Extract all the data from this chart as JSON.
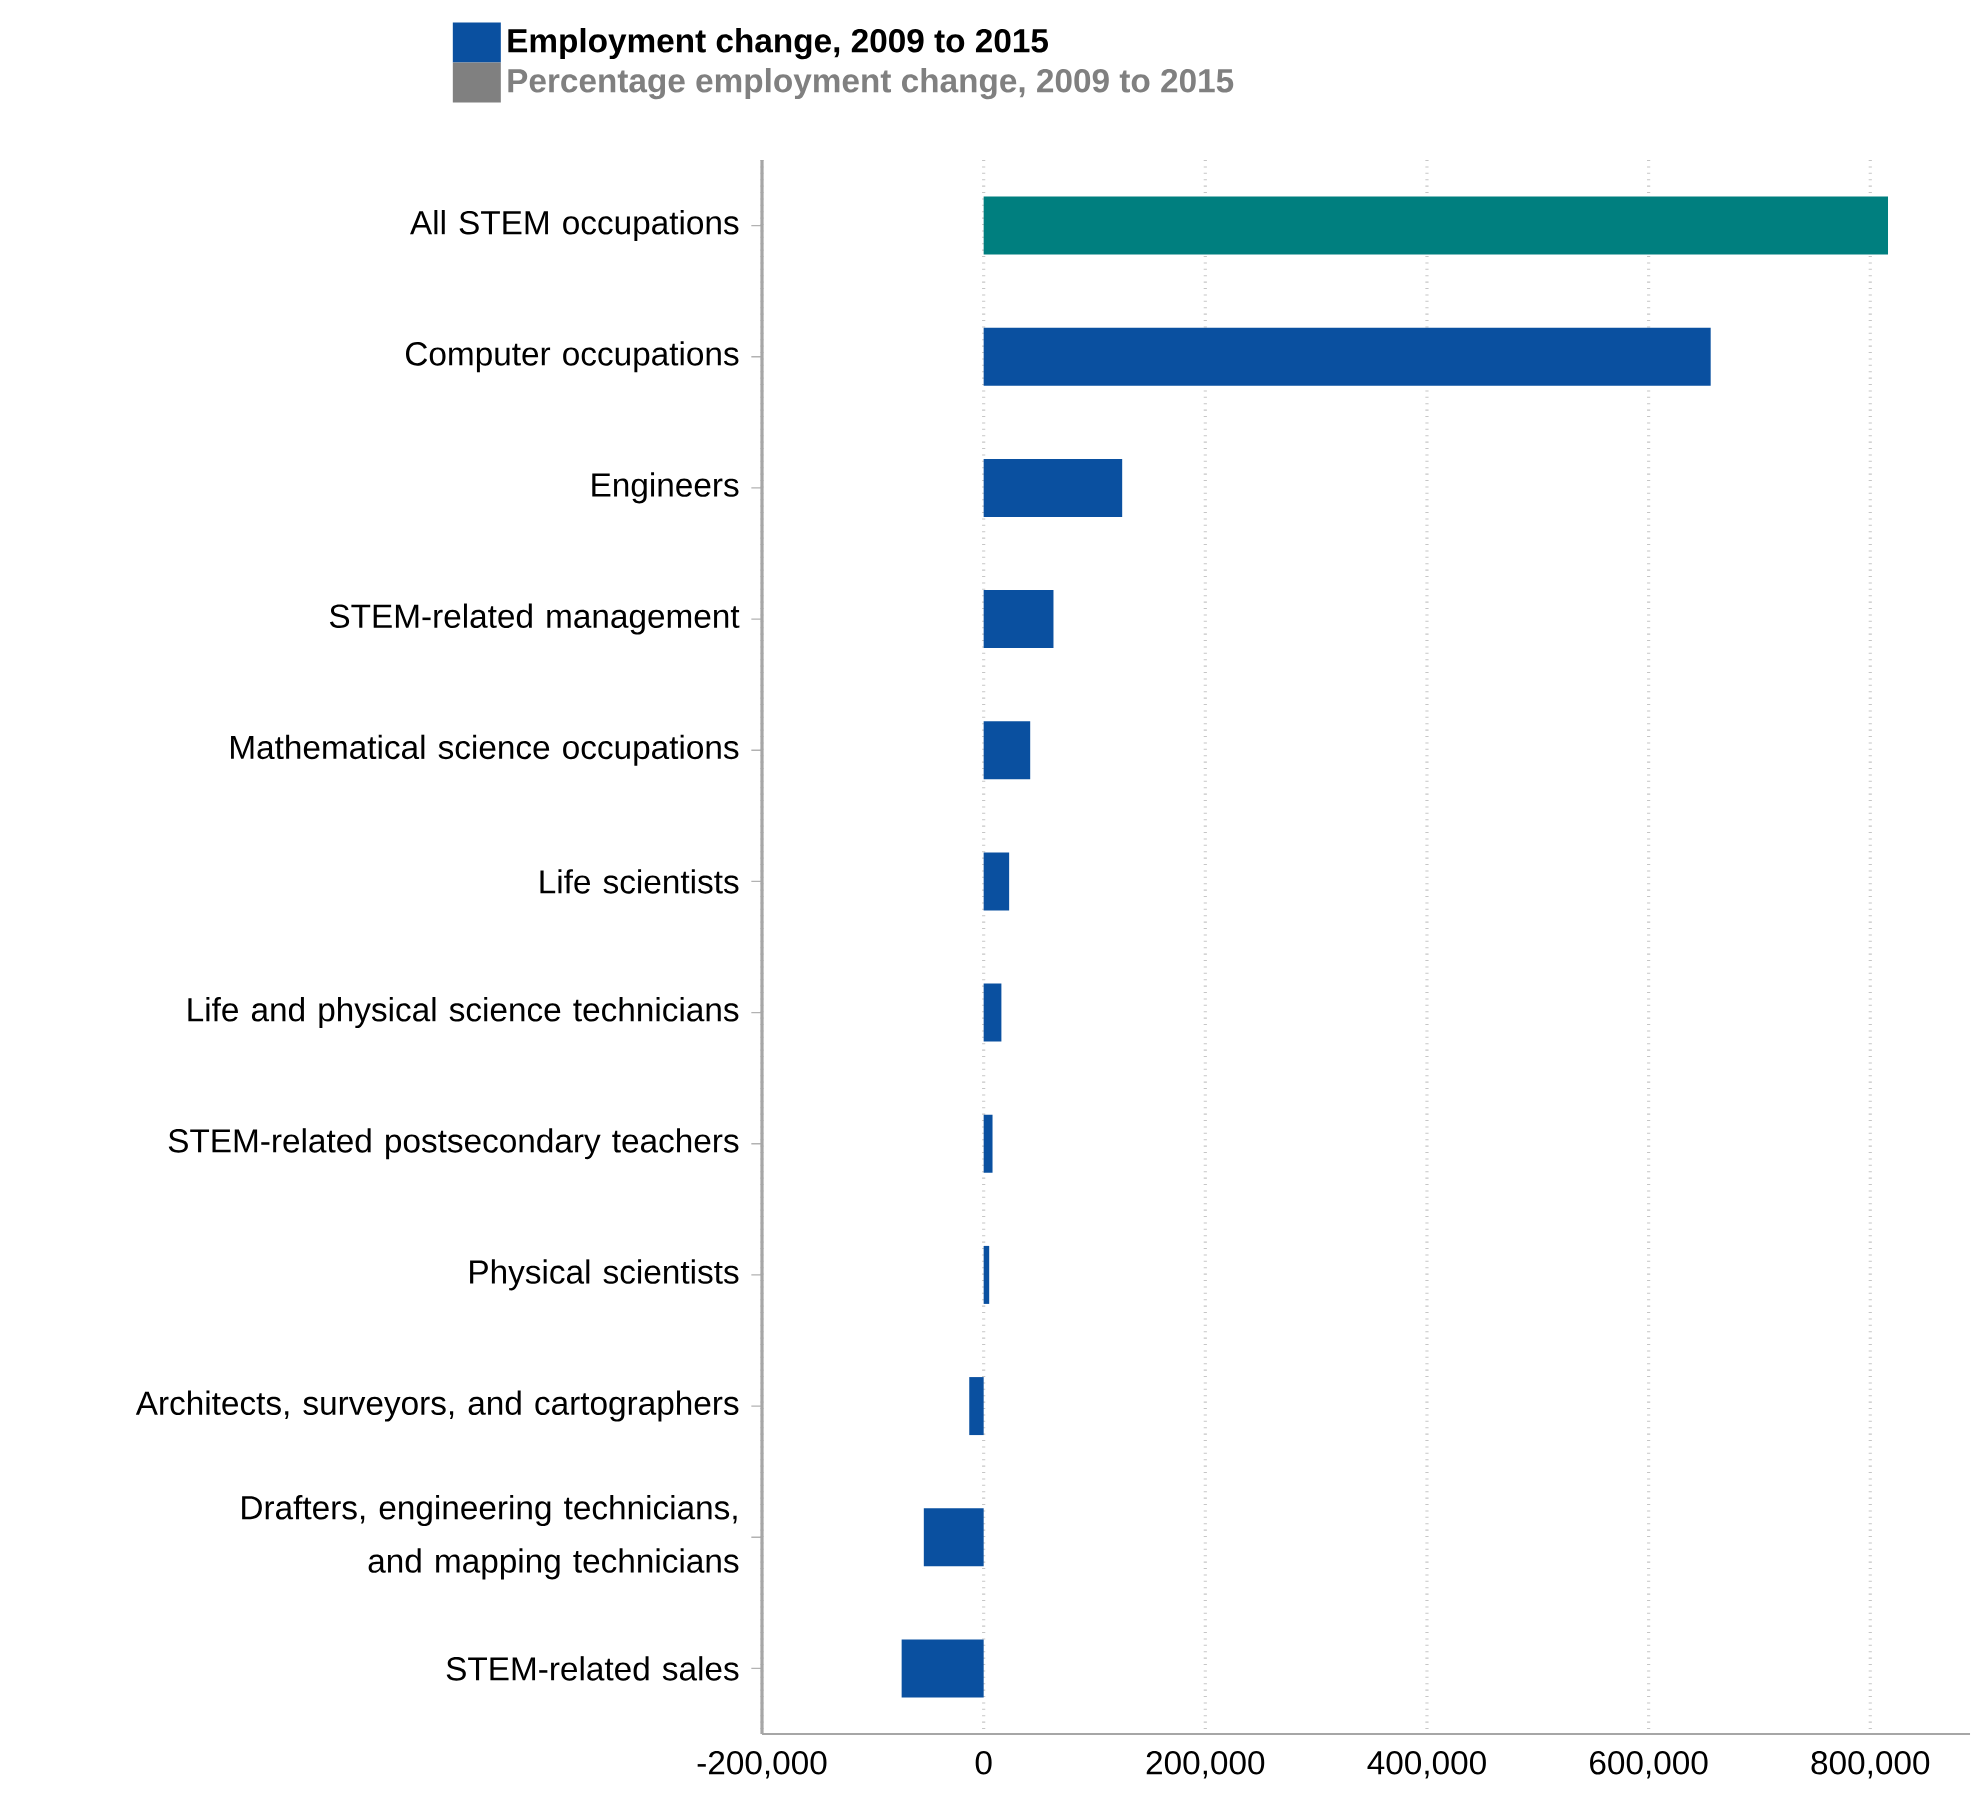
{
  "chart_data": {
    "type": "bar",
    "orientation": "horizontal",
    "categories": [
      "All STEM occupations",
      "Computer occupations",
      "Engineers",
      "STEM-related management",
      "Mathematical science occupations",
      "Life scientists",
      "Life and physical science technicians",
      "STEM-related postsecondary teachers",
      "Physical scientists",
      "Architects, surveyors, and cartographers",
      "Drafters, engineering technicians, and mapping technicians",
      "STEM-related sales"
    ],
    "series": [
      {
        "name": "Employment change, 2009 to 2015",
        "color": "#0a50a0",
        "colors": [
          "#007f7f",
          "#0a50a0",
          "#0a50a0",
          "#0a50a0",
          "#0a50a0",
          "#0a50a0",
          "#0a50a0",
          "#0a50a0",
          "#0a50a0",
          "#0a50a0",
          "#0a50a0",
          "#0a50a0"
        ],
        "values": [
          816000,
          656000,
          125000,
          63000,
          42000,
          23000,
          16000,
          8000,
          5000,
          -13000,
          -54000,
          -74000
        ]
      },
      {
        "name": "Percentage employment change, 2009 to 2015",
        "color": "#808080",
        "values": [
          null,
          null,
          null,
          null,
          null,
          null,
          null,
          null,
          null,
          null,
          null,
          null
        ]
      }
    ],
    "xlim": [
      -200000,
      890000
    ],
    "xticks": [
      {
        "value": -200000,
        "label": "-200,000"
      },
      0,
      {
        "value": 200000,
        "label": "200,000"
      },
      {
        "value": 400000,
        "label": "400,000"
      },
      {
        "value": 600000,
        "label": "600,000"
      },
      {
        "value": 800000,
        "label": "800,000"
      }
    ],
    "grid": "x",
    "legend": "top"
  }
}
